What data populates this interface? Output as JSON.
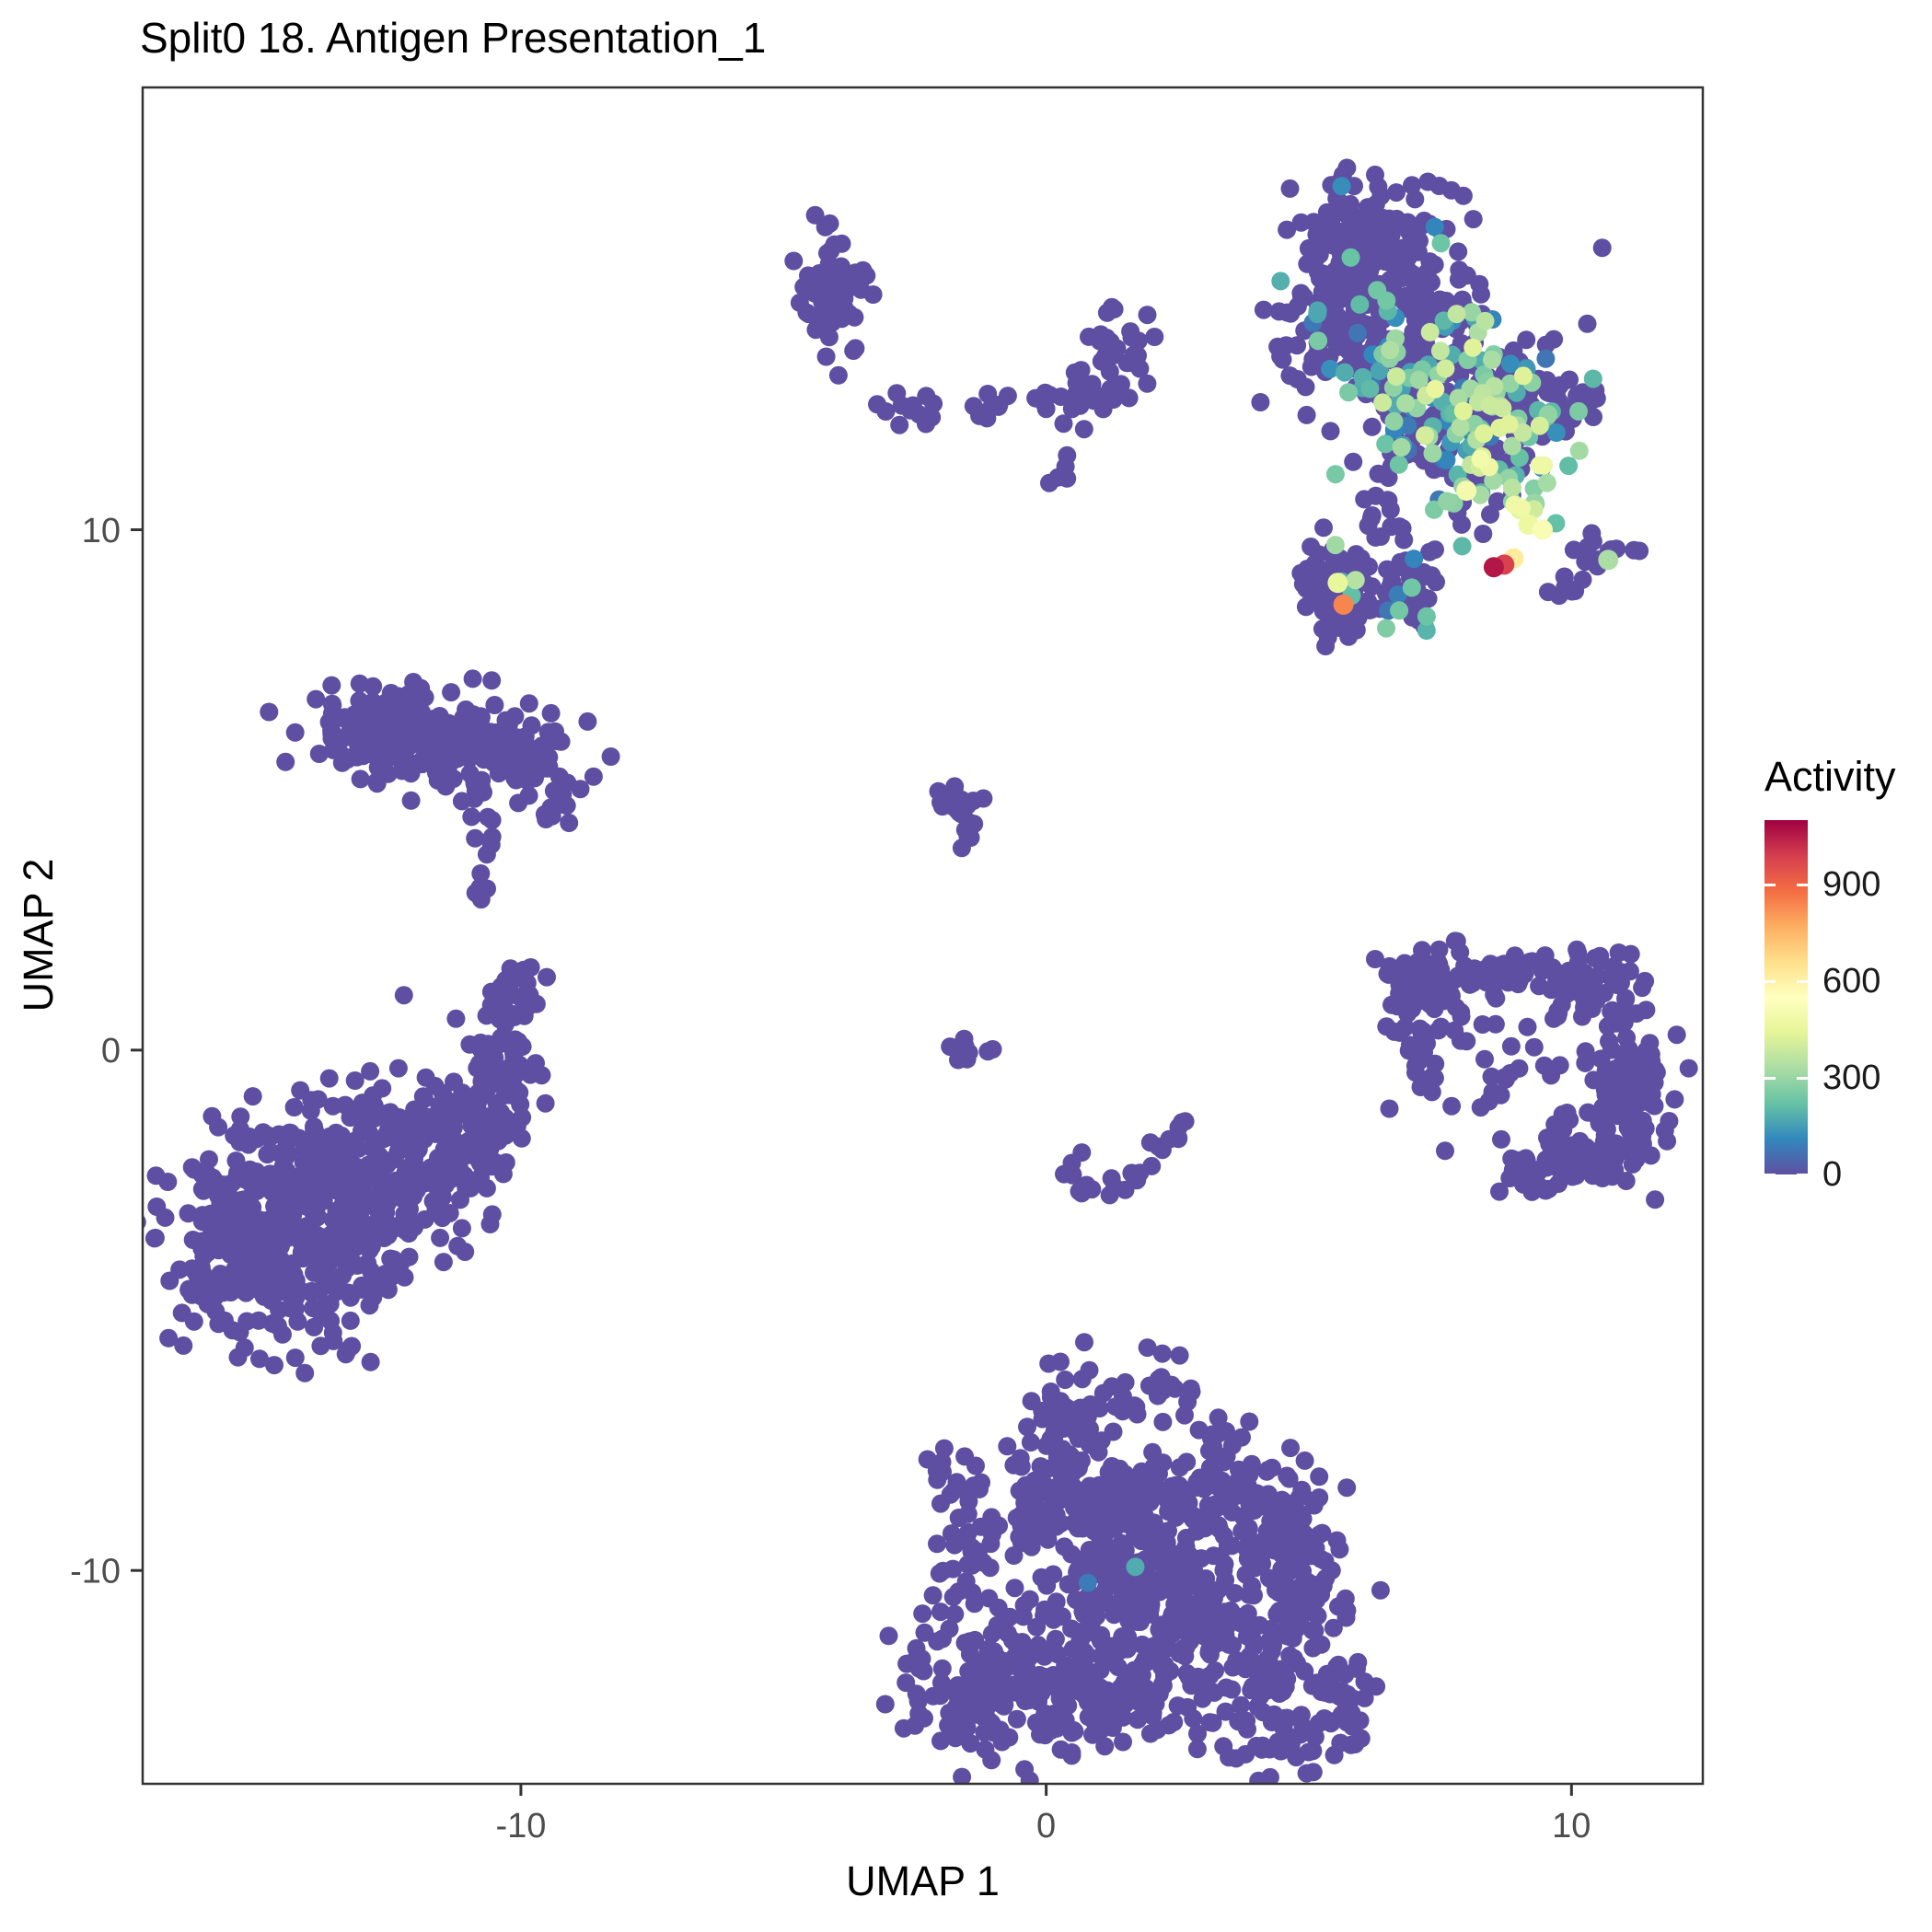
{
  "title": "Split0 18. Antigen Presentation_1",
  "axes": {
    "x_label": "UMAP 1",
    "y_label": "UMAP 2",
    "x_ticks": [
      -10,
      0,
      10
    ],
    "y_ticks": [
      10,
      0,
      -10
    ]
  },
  "legend": {
    "title": "Activity",
    "ticks": [
      0,
      300,
      600,
      900
    ],
    "min": 0,
    "max": 1100
  },
  "colormap": {
    "name": "spectral-reversed",
    "stops": [
      "#5E4FA2",
      "#3288BD",
      "#66C2A5",
      "#ABDDA4",
      "#E6F598",
      "#FFFFBF",
      "#FEE08B",
      "#FDAE61",
      "#F46D43",
      "#D53E4F",
      "#9E0142"
    ]
  },
  "chart_data": {
    "type": "scatter",
    "title": "Split0 18. Antigen Presentation_1",
    "xlabel": "UMAP 1",
    "ylabel": "UMAP 2",
    "xlim": [
      -17.2,
      12.5
    ],
    "ylim": [
      -14.1,
      18.5
    ],
    "grid": false,
    "legend_position": "right",
    "seed": 42,
    "point_radius": 10,
    "clusters": [
      {
        "name": "tr-main-upper",
        "cx": 6.3,
        "cy": 14.3,
        "sx": 1.0,
        "sy": 1.05,
        "n": 280,
        "activity": {
          "zero_frac": 0.92,
          "min": 60,
          "max": 280
        }
      },
      {
        "name": "tr-main-lower",
        "cx": 7.4,
        "cy": 12.4,
        "sx": 1.05,
        "sy": 0.9,
        "n": 220,
        "activity": {
          "zero_frac": 0.55,
          "min": 60,
          "max": 430
        }
      },
      {
        "name": "tr-main-tip",
        "cx": 6.0,
        "cy": 15.6,
        "sx": 0.65,
        "sy": 0.6,
        "n": 90,
        "activity": {
          "zero_frac": 0.95,
          "min": 60,
          "max": 200
        }
      },
      {
        "name": "tr-main-right",
        "cx": 8.5,
        "cy": 11.6,
        "sx": 0.7,
        "sy": 0.8,
        "n": 90,
        "activity": {
          "zero_frac": 0.45,
          "min": 80,
          "max": 500
        }
      },
      {
        "name": "tr-right-lobe",
        "cx": 9.6,
        "cy": 12.5,
        "sx": 0.45,
        "sy": 0.35,
        "n": 40,
        "activity": {
          "zero_frac": 0.8,
          "min": 60,
          "max": 320
        }
      },
      {
        "name": "top-small",
        "cx": -4.1,
        "cy": 14.6,
        "sx": 0.35,
        "sy": 0.55,
        "n": 60,
        "activity": null
      },
      {
        "name": "chain-1",
        "cx": -2.5,
        "cy": 12.35,
        "sx": 0.3,
        "sy": 0.2,
        "n": 12,
        "activity": null
      },
      {
        "name": "chain-2",
        "cx": -1.1,
        "cy": 12.3,
        "sx": 0.25,
        "sy": 0.15,
        "n": 8,
        "activity": null
      },
      {
        "name": "chain-3",
        "cx": 0.8,
        "cy": 12.6,
        "sx": 0.5,
        "sy": 0.35,
        "n": 25,
        "activity": null
      },
      {
        "name": "chain-4",
        "cx": 1.6,
        "cy": 13.3,
        "sx": 0.3,
        "sy": 0.35,
        "n": 15,
        "activity": null
      },
      {
        "name": "chain-5",
        "cx": 1.4,
        "cy": 13.9,
        "sx": 0.35,
        "sy": 0.3,
        "n": 10,
        "activity": null
      },
      {
        "name": "chain-6",
        "cx": 0.3,
        "cy": 11.1,
        "sx": 0.15,
        "sy": 0.15,
        "n": 5,
        "activity": null
      },
      {
        "name": "chain-7",
        "cx": -0.1,
        "cy": 12.45,
        "sx": 0.12,
        "sy": 0.12,
        "n": 4,
        "activity": null
      },
      {
        "name": "sub-left",
        "cx": 5.55,
        "cy": 8.8,
        "sx": 0.42,
        "sy": 0.42,
        "n": 80,
        "activity": {
          "zero_frac": 0.9,
          "min": 80,
          "max": 350
        }
      },
      {
        "name": "sub-mid",
        "cx": 7.0,
        "cy": 8.85,
        "sx": 0.3,
        "sy": 0.45,
        "n": 40,
        "activity": {
          "zero_frac": 0.92,
          "min": 60,
          "max": 300
        }
      },
      {
        "name": "sub-mid-upper",
        "cx": 6.4,
        "cy": 10.0,
        "sx": 0.25,
        "sy": 0.3,
        "n": 12,
        "activity": null
      },
      {
        "name": "right-small",
        "cx": 10.55,
        "cy": 9.45,
        "sx": 0.3,
        "sy": 0.18,
        "n": 14,
        "activity": {
          "zero_frac": 0.9,
          "min": 100,
          "max": 350
        }
      },
      {
        "name": "right-small-2",
        "cx": 9.85,
        "cy": 8.85,
        "sx": 0.2,
        "sy": 0.15,
        "n": 8,
        "activity": null
      },
      {
        "name": "ml-bar-1",
        "cx": -12.8,
        "cy": 6.2,
        "sx": 0.7,
        "sy": 0.4,
        "n": 120,
        "activity": null
      },
      {
        "name": "ml-bar-2",
        "cx": -11.3,
        "cy": 6.0,
        "sx": 0.8,
        "sy": 0.4,
        "n": 120,
        "activity": null
      },
      {
        "name": "ml-bar-3",
        "cx": -9.9,
        "cy": 5.6,
        "sx": 0.5,
        "sy": 0.35,
        "n": 60,
        "activity": null
      },
      {
        "name": "ml-trail-1",
        "cx": -10.9,
        "cy": 4.9,
        "sx": 0.2,
        "sy": 0.2,
        "n": 8,
        "activity": null
      },
      {
        "name": "ml-trail-2",
        "cx": -10.6,
        "cy": 4.0,
        "sx": 0.15,
        "sy": 0.3,
        "n": 6,
        "activity": null
      },
      {
        "name": "ml-trail-3",
        "cx": -10.7,
        "cy": 3.1,
        "sx": 0.15,
        "sy": 0.2,
        "n": 5,
        "activity": null
      },
      {
        "name": "ml-trail-4",
        "cx": -9.4,
        "cy": 4.6,
        "sx": 0.2,
        "sy": 0.2,
        "n": 8,
        "activity": null
      },
      {
        "name": "bl-main",
        "cx": -14.6,
        "cy": -3.6,
        "sx": 1.1,
        "sy": 1.0,
        "n": 360,
        "activity": null
      },
      {
        "name": "bl-mid",
        "cx": -13.0,
        "cy": -2.4,
        "sx": 1.0,
        "sy": 0.9,
        "n": 220,
        "activity": null
      },
      {
        "name": "bl-right",
        "cx": -11.2,
        "cy": -1.6,
        "sx": 0.7,
        "sy": 0.7,
        "n": 110,
        "activity": null
      },
      {
        "name": "bl-arm",
        "cx": -10.3,
        "cy": -0.2,
        "sx": 0.3,
        "sy": 0.6,
        "n": 45,
        "activity": null
      },
      {
        "name": "bl-arm-tip",
        "cx": -10.2,
        "cy": 1.2,
        "sx": 0.25,
        "sy": 0.4,
        "n": 25,
        "activity": null
      },
      {
        "name": "c-small",
        "cx": -1.65,
        "cy": 4.55,
        "sx": 0.22,
        "sy": 0.3,
        "n": 25,
        "activity": null
      },
      {
        "name": "c-row",
        "cx": -1.5,
        "cy": 0.05,
        "sx": 0.35,
        "sy": 0.12,
        "n": 12,
        "activity": null
      },
      {
        "name": "c-arc-1",
        "cx": 0.45,
        "cy": -2.3,
        "sx": 0.15,
        "sy": 0.15,
        "n": 6,
        "activity": null
      },
      {
        "name": "c-arc-2",
        "cx": 1.0,
        "cy": -2.6,
        "sx": 0.3,
        "sy": 0.15,
        "n": 8,
        "activity": null
      },
      {
        "name": "c-arc-3",
        "cx": 1.7,
        "cy": -2.4,
        "sx": 0.15,
        "sy": 0.15,
        "n": 5,
        "activity": null
      },
      {
        "name": "c-arc-4",
        "cx": 2.3,
        "cy": -1.9,
        "sx": 0.15,
        "sy": 0.3,
        "n": 6,
        "activity": null
      },
      {
        "name": "c-arc-5",
        "cx": 2.5,
        "cy": -1.2,
        "sx": 0.12,
        "sy": 0.2,
        "n": 4,
        "activity": null
      },
      {
        "name": "mr-top",
        "cx": 8.4,
        "cy": 1.5,
        "sx": 0.9,
        "sy": 0.25,
        "n": 80,
        "activity": null
      },
      {
        "name": "mr-topleft",
        "cx": 7.0,
        "cy": 1.2,
        "sx": 0.3,
        "sy": 0.3,
        "n": 25,
        "activity": null
      },
      {
        "name": "mr-topright",
        "cx": 10.3,
        "cy": 1.2,
        "sx": 0.4,
        "sy": 0.3,
        "n": 40,
        "activity": null
      },
      {
        "name": "mr-right",
        "cx": 11.0,
        "cy": -0.5,
        "sx": 0.4,
        "sy": 0.9,
        "n": 110,
        "activity": null
      },
      {
        "name": "mr-botright",
        "cx": 10.4,
        "cy": -2.0,
        "sx": 0.5,
        "sy": 0.45,
        "n": 70,
        "activity": null
      },
      {
        "name": "mr-left",
        "cx": 7.2,
        "cy": 0.1,
        "sx": 0.35,
        "sy": 0.6,
        "n": 35,
        "activity": null
      },
      {
        "name": "mr-center",
        "cx": 9.2,
        "cy": -0.3,
        "sx": 0.9,
        "sy": 0.8,
        "n": 45,
        "activity": null
      },
      {
        "name": "mr-bottom",
        "cx": 9.3,
        "cy": -2.4,
        "sx": 0.5,
        "sy": 0.3,
        "n": 25,
        "activity": null
      },
      {
        "name": "bot-arm",
        "cx": 0.6,
        "cy": -7.2,
        "sx": 0.5,
        "sy": 0.6,
        "n": 70,
        "activity": null
      },
      {
        "name": "bot-1",
        "cx": 0.2,
        "cy": -8.6,
        "sx": 0.8,
        "sy": 0.5,
        "n": 90,
        "activity": null
      },
      {
        "name": "bot-2",
        "cx": 1.7,
        "cy": -8.9,
        "sx": 0.7,
        "sy": 0.5,
        "n": 80,
        "activity": null
      },
      {
        "name": "bot-3",
        "cx": 3.4,
        "cy": -8.6,
        "sx": 0.8,
        "sy": 0.5,
        "n": 90,
        "activity": null
      },
      {
        "name": "bot-4",
        "cx": 4.6,
        "cy": -9.3,
        "sx": 0.5,
        "sy": 0.5,
        "n": 60,
        "activity": null
      },
      {
        "name": "bot-5",
        "cx": 1.0,
        "cy": -10.3,
        "sx": 1.0,
        "sy": 0.6,
        "n": 110,
        "activity": {
          "zero_frac": 0.99,
          "min": 80,
          "max": 200
        }
      },
      {
        "name": "bot-6",
        "cx": 2.8,
        "cy": -10.6,
        "sx": 0.8,
        "sy": 0.5,
        "n": 85,
        "activity": null
      },
      {
        "name": "bot-7",
        "cx": -0.9,
        "cy": -12.3,
        "sx": 0.9,
        "sy": 0.7,
        "n": 150,
        "activity": null
      },
      {
        "name": "bot-8",
        "cx": 1.2,
        "cy": -12.2,
        "sx": 0.8,
        "sy": 0.6,
        "n": 110,
        "activity": null
      },
      {
        "name": "bot-9",
        "cx": 3.9,
        "cy": -11.9,
        "sx": 0.9,
        "sy": 0.7,
        "n": 120,
        "activity": null
      },
      {
        "name": "bot-10",
        "cx": 5.0,
        "cy": -10.7,
        "sx": 0.5,
        "sy": 0.5,
        "n": 50,
        "activity": null
      },
      {
        "name": "bot-11",
        "cx": -1.5,
        "cy": -9.4,
        "sx": 0.3,
        "sy": 0.4,
        "n": 20,
        "activity": null
      },
      {
        "name": "bot-12",
        "cx": -1.9,
        "cy": -8.0,
        "sx": 0.2,
        "sy": 0.3,
        "n": 10,
        "activity": null
      },
      {
        "name": "bot-13",
        "cx": 2.2,
        "cy": -6.6,
        "sx": 0.3,
        "sy": 0.3,
        "n": 15,
        "activity": null
      },
      {
        "name": "bot-14",
        "cx": 3.3,
        "cy": -7.5,
        "sx": 0.3,
        "sy": 0.3,
        "n": 15,
        "activity": null
      },
      {
        "name": "bot-15",
        "cx": -1.6,
        "cy": -10.6,
        "sx": 0.3,
        "sy": 0.4,
        "n": 15,
        "activity": null
      },
      {
        "name": "bot-16",
        "cx": 5.6,
        "cy": -12.6,
        "sx": 0.4,
        "sy": 0.4,
        "n": 30,
        "activity": null
      },
      {
        "name": "bot-17",
        "cx": 4.7,
        "cy": -13.3,
        "sx": 0.5,
        "sy": 0.3,
        "n": 25,
        "activity": null
      }
    ],
    "highlights": [
      {
        "x": 8.52,
        "y": 9.28,
        "activity": 1060
      },
      {
        "x": 8.72,
        "y": 9.33,
        "activity": 980
      },
      {
        "x": 8.9,
        "y": 9.45,
        "activity": 620
      },
      {
        "x": 9.18,
        "y": 10.1,
        "activity": 470
      },
      {
        "x": 9.45,
        "y": 10.0,
        "activity": 520
      },
      {
        "x": 9.02,
        "y": 10.4,
        "activity": 430
      },
      {
        "x": 9.3,
        "y": 10.5,
        "activity": 300
      },
      {
        "x": 5.66,
        "y": 8.56,
        "activity": 840
      },
      {
        "x": 5.55,
        "y": 8.98,
        "activity": 450
      },
      {
        "x": 10.7,
        "y": 9.42,
        "activity": 330
      },
      {
        "x": 8.0,
        "y": 10.75,
        "activity": 500
      }
    ]
  }
}
